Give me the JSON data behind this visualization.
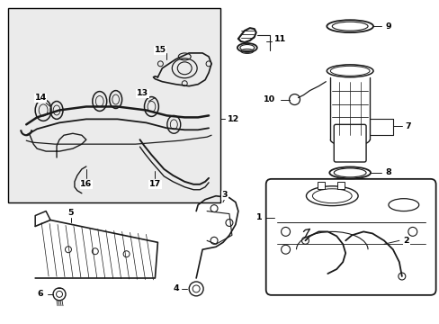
{
  "bg_color": "#ffffff",
  "box_bg": "#ebebeb",
  "line_color": "#1a1a1a",
  "fig_width": 4.89,
  "fig_height": 3.6,
  "dpi": 100
}
